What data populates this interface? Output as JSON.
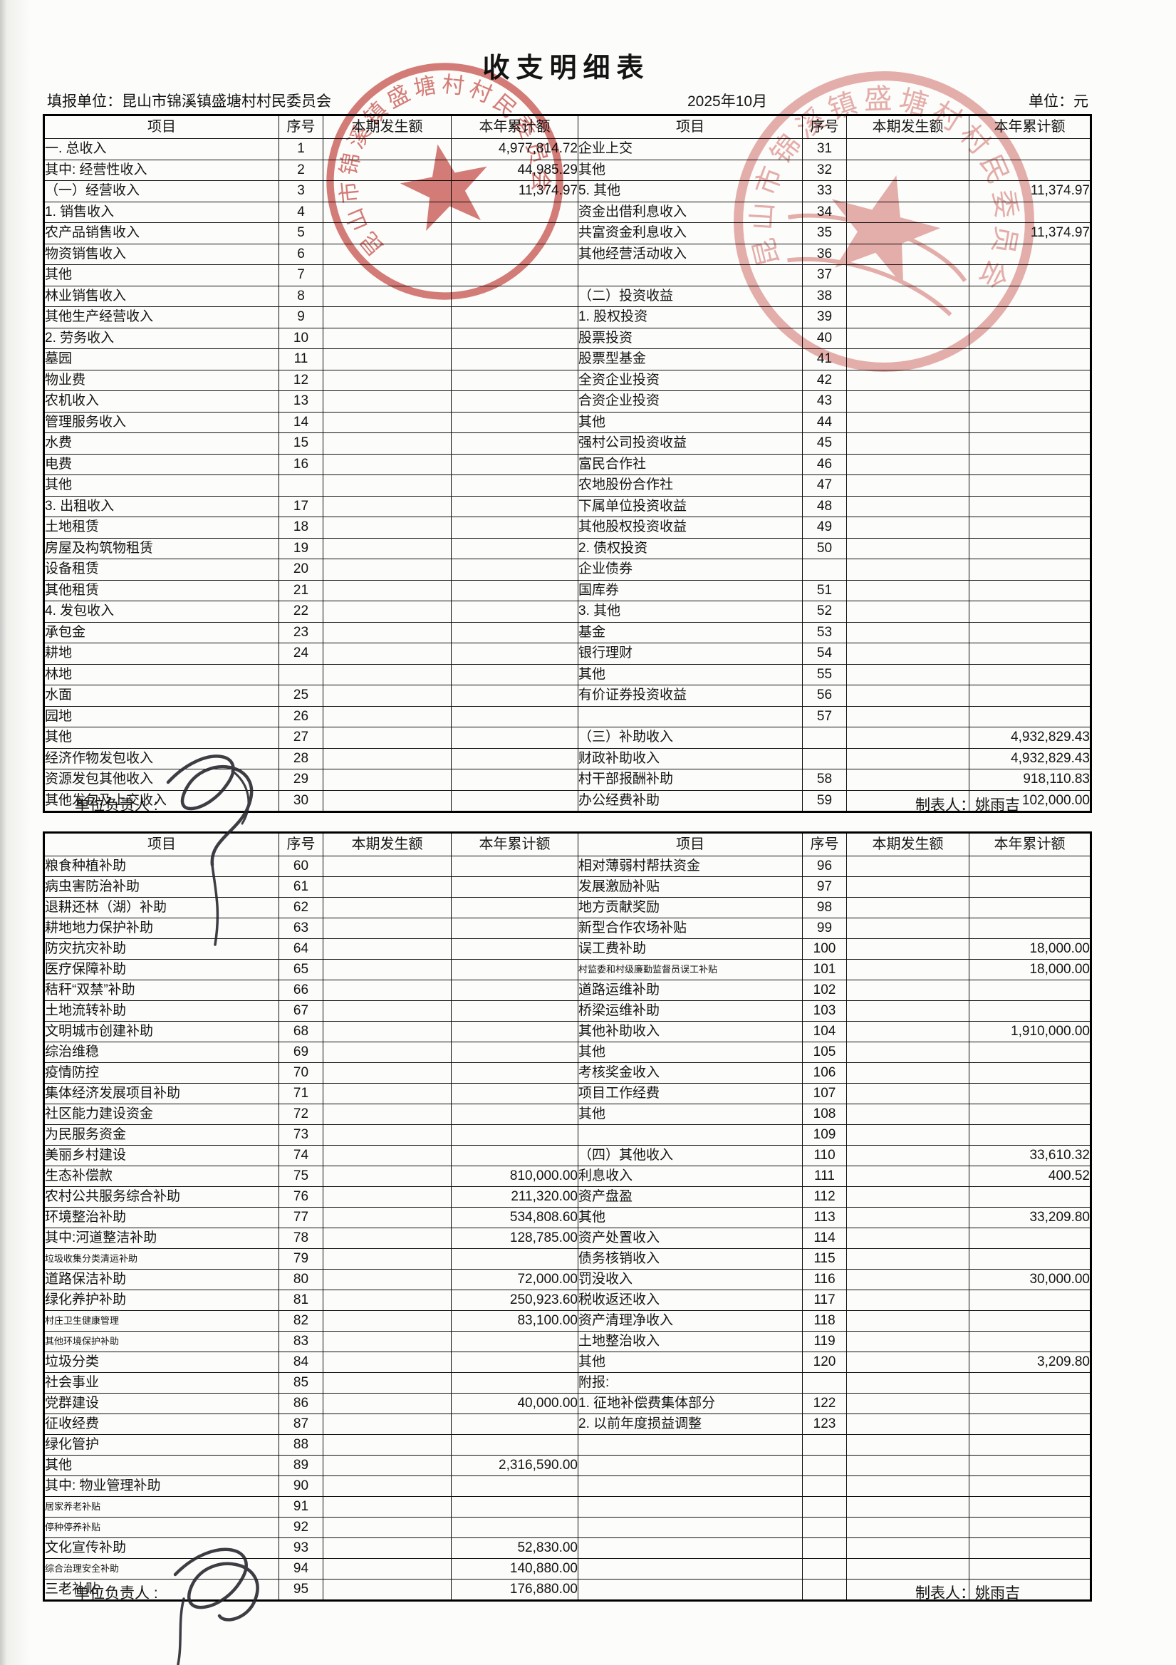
{
  "page": {
    "title": "收支明细表",
    "unit_label": "填报单位：昆山市锦溪镇盛塘村村民委员会",
    "period": "2025年10月",
    "currency_label": "单位：元",
    "responsible_label": "单位负责人 :",
    "preparer_label": "制表人：姚雨吉"
  },
  "columns": [
    "项目",
    "序号",
    "本期发生额",
    "本年累计额"
  ],
  "stamp": {
    "ring_text": "昆山市锦溪镇盛塘村村民委员会",
    "color": "#bd2c26"
  },
  "table1": {
    "left": [
      {
        "t": "一. 总收入",
        "n": "1",
        "y": "4,977,814.72",
        "i": 0
      },
      {
        "t": "其中: 经营性收入",
        "n": "2",
        "y": "44,985.29",
        "i": 4
      },
      {
        "t": "（一）经营收入",
        "n": "3",
        "y": "11,374.97",
        "i": 1
      },
      {
        "t": "1. 销售收入",
        "n": "4",
        "i": 2
      },
      {
        "t": "农产品销售收入",
        "n": "5",
        "i": 4
      },
      {
        "t": "物资销售收入",
        "n": "6",
        "i": 4
      },
      {
        "t": "其他",
        "n": "7",
        "i": 4
      },
      {
        "t": "林业销售收入",
        "n": "8",
        "i": 5
      },
      {
        "t": "其他生产经营收入",
        "n": "9",
        "i": 5
      },
      {
        "t": "2. 劳务收入",
        "n": "10",
        "i": 2
      },
      {
        "t": "墓园",
        "n": "11",
        "i": 4
      },
      {
        "t": "物业费",
        "n": "12",
        "i": 4
      },
      {
        "t": "农机收入",
        "n": "13",
        "i": 4
      },
      {
        "t": "管理服务收入",
        "n": "14",
        "i": 4
      },
      {
        "t": "水费",
        "n": "15",
        "i": 4
      },
      {
        "t": "电费",
        "n": "16",
        "i": 4
      },
      {
        "t": "其他",
        "i": 4
      },
      {
        "t": "3. 出租收入",
        "n": "17",
        "i": 2
      },
      {
        "t": "土地租赁",
        "n": "18",
        "i": 4
      },
      {
        "t": "房屋及构筑物租赁",
        "n": "19",
        "i": 4
      },
      {
        "t": "设备租赁",
        "n": "20",
        "i": 4
      },
      {
        "t": "其他租赁",
        "n": "21",
        "i": 4
      },
      {
        "t": "4. 发包收入",
        "n": "22",
        "i": 2
      },
      {
        "t": "承包金",
        "n": "23",
        "i": 4
      },
      {
        "t": "耕地",
        "n": "24",
        "i": 4
      },
      {
        "t": "林地",
        "i": 4
      },
      {
        "t": "水面",
        "n": "25",
        "i": 4
      },
      {
        "t": "园地",
        "n": "26",
        "i": 4
      },
      {
        "t": "其他",
        "n": "27",
        "i": 4
      },
      {
        "t": "经济作物发包收入",
        "n": "28",
        "i": 6
      },
      {
        "t": "资源发包其他收入",
        "n": "29",
        "i": 6
      },
      {
        "t": "其他发包及上交收入",
        "n": "30",
        "i": 6
      }
    ],
    "right": [
      {
        "t": "企业上交",
        "n": "31",
        "i": 4
      },
      {
        "t": "其他",
        "n": "32",
        "i": 4
      },
      {
        "t": "5. 其他",
        "n": "33",
        "y": "11,374.97",
        "i": 2
      },
      {
        "t": "资金出借利息收入",
        "n": "34",
        "i": 5
      },
      {
        "t": "共富资金利息收入",
        "n": "35",
        "y": "11,374.97",
        "i": 5
      },
      {
        "t": "其他经营活动收入",
        "n": "36",
        "i": 5
      },
      {
        "t": "",
        "n": "37",
        "i": 0
      },
      {
        "t": "（二）投资收益",
        "n": "38",
        "i": 0
      },
      {
        "t": "1. 股权投资",
        "n": "39",
        "i": 2
      },
      {
        "t": "股票投资",
        "n": "40",
        "i": 4
      },
      {
        "t": "股票型基金",
        "n": "41",
        "i": 4
      },
      {
        "t": "全资企业投资",
        "n": "42",
        "i": 4
      },
      {
        "t": "合资企业投资",
        "n": "43",
        "i": 4
      },
      {
        "t": "其他",
        "n": "44",
        "i": 4
      },
      {
        "t": "强村公司投资收益",
        "n": "45",
        "i": 6
      },
      {
        "t": "富民合作社",
        "n": "46",
        "i": 6
      },
      {
        "t": "农地股份合作社",
        "n": "47",
        "i": 6
      },
      {
        "t": "下属单位投资收益",
        "n": "48",
        "i": 6
      },
      {
        "t": "其他股权投资收益",
        "n": "49",
        "i": 6
      },
      {
        "t": "2. 债权投资",
        "n": "50",
        "i": 2
      },
      {
        "t": "企业债券",
        "i": 4
      },
      {
        "t": "国库券",
        "n": "51",
        "i": 4
      },
      {
        "t": "3. 其他",
        "n": "52",
        "i": 2
      },
      {
        "t": "基金",
        "n": "53",
        "i": 4
      },
      {
        "t": "银行理财",
        "n": "54",
        "i": 4
      },
      {
        "t": "其他",
        "n": "55",
        "i": 4
      },
      {
        "t": "有价证券投资收益",
        "n": "56",
        "i": 6
      },
      {
        "t": "",
        "n": "57",
        "i": 0
      },
      {
        "t": "（三）补助收入",
        "y": "4,932,829.43",
        "i": 0
      },
      {
        "t": "财政补助收入",
        "y": "4,932,829.43",
        "i": 2
      },
      {
        "t": "村干部报酬补助",
        "n": "58",
        "y": "918,110.83",
        "i": 3
      },
      {
        "t": "办公经费补助",
        "n": "59",
        "y": "102,000.00",
        "i": 3
      }
    ]
  },
  "table2": {
    "left": [
      {
        "t": "粮食种植补助",
        "n": "60",
        "i": 4
      },
      {
        "t": "病虫害防治补助",
        "n": "61",
        "i": 4
      },
      {
        "t": "退耕还林（湖）补助",
        "n": "62",
        "i": 4
      },
      {
        "t": "耕地地力保护补助",
        "n": "63",
        "i": 4
      },
      {
        "t": "防灾抗灾补助",
        "n": "64",
        "i": 4
      },
      {
        "t": "医疗保障补助",
        "n": "65",
        "i": 4
      },
      {
        "t": "秸秆“双禁”补助",
        "n": "66",
        "i": 4
      },
      {
        "t": "土地流转补助",
        "n": "67",
        "i": 4
      },
      {
        "t": "文明城市创建补助",
        "n": "68",
        "i": 4
      },
      {
        "t": "综治维稳",
        "n": "69",
        "i": 4
      },
      {
        "t": "疫情防控",
        "n": "70",
        "i": 4
      },
      {
        "t": "集体经济发展项目补助",
        "n": "71",
        "i": 4
      },
      {
        "t": "社区能力建设资金",
        "n": "72",
        "i": 4
      },
      {
        "t": "为民服务资金",
        "n": "73",
        "i": 4
      },
      {
        "t": "美丽乡村建设",
        "n": "74",
        "i": 4
      },
      {
        "t": "生态补偿款",
        "n": "75",
        "y": "810,000.00",
        "i": 4
      },
      {
        "t": "农村公共服务综合补助",
        "n": "76",
        "y": "211,320.00",
        "i": 4
      },
      {
        "t": "环境整治补助",
        "n": "77",
        "y": "534,808.60",
        "i": 4
      },
      {
        "t": "其中:河道整洁补助",
        "n": "78",
        "y": "128,785.00",
        "i": 5
      },
      {
        "t": "垃圾收集分类清运补助",
        "n": "79",
        "i": 6,
        "s": 1
      },
      {
        "t": "道路保洁补助",
        "n": "80",
        "y": "72,000.00",
        "i": 7
      },
      {
        "t": "绿化养护补助",
        "n": "81",
        "y": "250,923.60",
        "i": 7
      },
      {
        "t": "村庄卫生健康管理",
        "n": "82",
        "y": "83,100.00",
        "i": 7,
        "s": 1
      },
      {
        "t": "其他环境保护补助",
        "n": "83",
        "i": 7,
        "s": 1
      },
      {
        "t": "垃圾分类",
        "n": "84",
        "i": 4
      },
      {
        "t": "社会事业",
        "n": "85",
        "i": 4
      },
      {
        "t": "党群建设",
        "n": "86",
        "y": "40,000.00",
        "i": 4
      },
      {
        "t": "征收经费",
        "n": "87",
        "i": 4
      },
      {
        "t": "绿化管护",
        "n": "88",
        "i": 4
      },
      {
        "t": "其他",
        "n": "89",
        "y": "2,316,590.00",
        "i": 4
      },
      {
        "t": "其中: 物业管理补助",
        "n": "90",
        "i": 5
      },
      {
        "t": "居家养老补贴",
        "n": "91",
        "i": 7,
        "s": 1
      },
      {
        "t": "停种停养补贴",
        "n": "92",
        "i": 7,
        "s": 1
      },
      {
        "t": "文化宣传补助",
        "n": "93",
        "y": "52,830.00",
        "i": 7
      },
      {
        "t": "综合治理安全补助",
        "n": "94",
        "y": "140,880.00",
        "i": 7,
        "s": 1
      },
      {
        "t": "三老补贴",
        "n": "95",
        "y": "176,880.00",
        "i": 7
      }
    ],
    "right": [
      {
        "t": "相对薄弱村帮扶资金",
        "n": "96",
        "i": 3
      },
      {
        "t": "发展激励补贴",
        "n": "97",
        "i": 3
      },
      {
        "t": "地方贡献奖励",
        "n": "98",
        "i": 3
      },
      {
        "t": "新型合作农场补贴",
        "n": "99",
        "i": 3
      },
      {
        "t": "误工费补助",
        "n": "100",
        "y": "18,000.00",
        "i": 3
      },
      {
        "t": "村监委和村级廉勤监督员误工补贴",
        "n": "101",
        "y": "18,000.00",
        "i": 2,
        "s": 1
      },
      {
        "t": "道路运维补助",
        "n": "102",
        "i": 3
      },
      {
        "t": "桥梁运维补助",
        "n": "103",
        "i": 3
      },
      {
        "t": "其他补助收入",
        "n": "104",
        "y": "1,910,000.00",
        "i": 3
      },
      {
        "t": "其他",
        "n": "105",
        "i": 2
      },
      {
        "t": "考核奖金收入",
        "n": "106",
        "i": 3
      },
      {
        "t": "项目工作经费",
        "n": "107",
        "i": 3
      },
      {
        "t": "其他",
        "n": "108",
        "i": 3
      },
      {
        "t": "",
        "n": "109",
        "i": 0
      },
      {
        "t": "（四）其他收入",
        "n": "110",
        "y": "33,610.32",
        "i": 0
      },
      {
        "t": "利息收入",
        "n": "111",
        "y": "400.52",
        "i": 2
      },
      {
        "t": "资产盘盈",
        "n": "112",
        "i": 2
      },
      {
        "t": "其他",
        "n": "113",
        "y": "33,209.80",
        "i": 2
      },
      {
        "t": "资产处置收入",
        "n": "114",
        "i": 3
      },
      {
        "t": "债务核销收入",
        "n": "115",
        "i": 3
      },
      {
        "t": "罚没收入",
        "n": "116",
        "y": "30,000.00",
        "i": 3
      },
      {
        "t": "税收返还收入",
        "n": "117",
        "i": 3
      },
      {
        "t": "资产清理净收入",
        "n": "118",
        "i": 3
      },
      {
        "t": "土地整治收入",
        "n": "119",
        "i": 3
      },
      {
        "t": "其他",
        "n": "120",
        "y": "3,209.80",
        "i": 3
      },
      {
        "t": "附报:",
        "i": 0
      },
      {
        "t": "1. 征地补偿费集体部分",
        "n": "122",
        "i": 1
      },
      {
        "t": "2. 以前年度损益调整",
        "n": "123",
        "i": 1
      },
      {
        "t": ""
      },
      {
        "t": ""
      },
      {
        "t": ""
      },
      {
        "t": ""
      },
      {
        "t": ""
      },
      {
        "t": ""
      },
      {
        "t": ""
      },
      {
        "t": ""
      }
    ]
  }
}
